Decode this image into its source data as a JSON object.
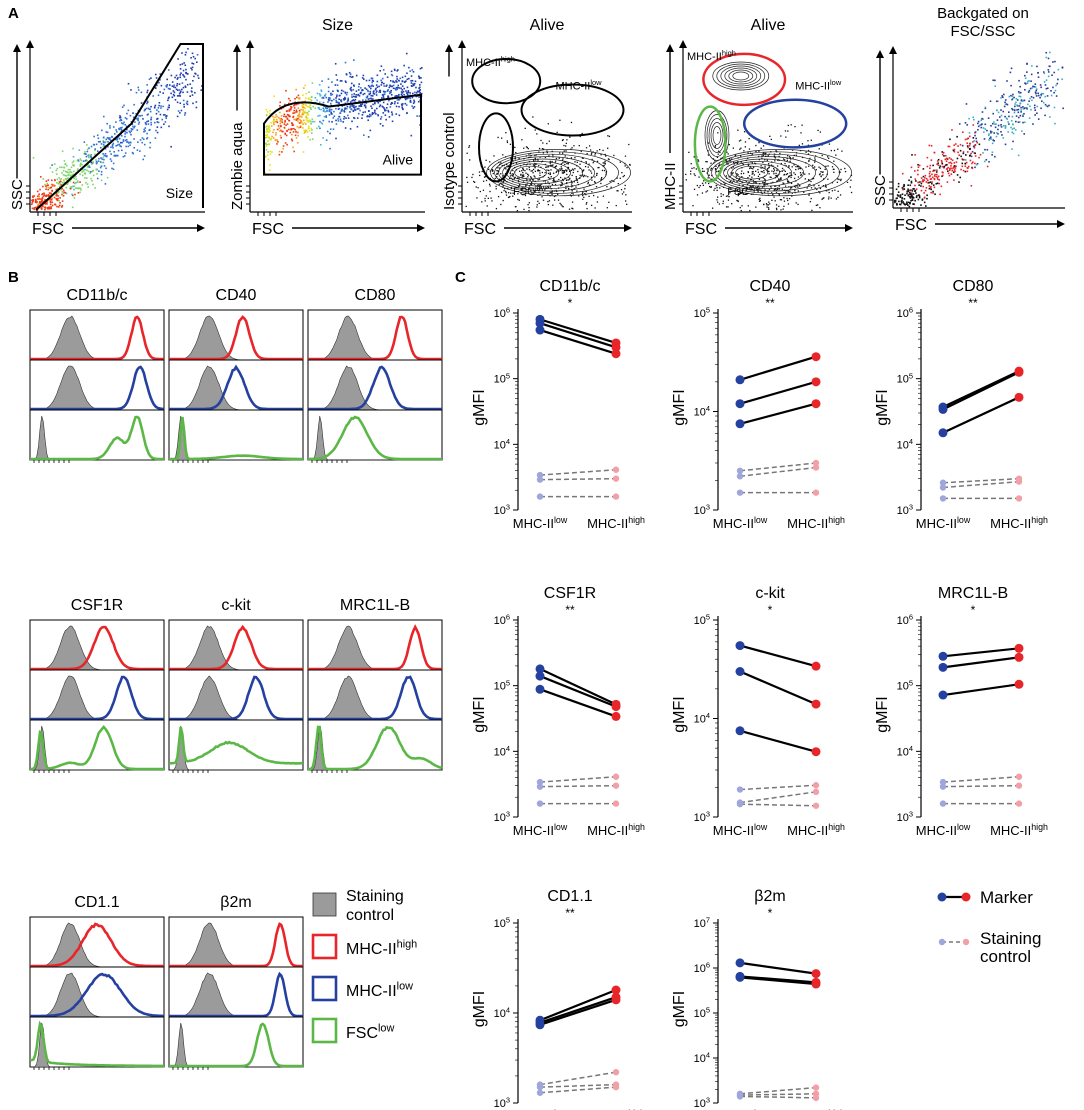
{
  "colors": {
    "high": "#e8262a",
    "low": "#2541a0",
    "fsclow": "#5cb846",
    "high_light": "#f2a0a8",
    "low_light": "#9ea6dc",
    "dash": "#777777",
    "gray": "#9b9b9b",
    "jet_mid": "#e7e11c",
    "jet_hot": "#f03a14",
    "jet_cool": "#2a5ec4"
  },
  "panelA": {
    "label": "A",
    "plots": [
      {
        "title": "",
        "xlabel": "FSC",
        "ylabel": "SSC",
        "gate_labels": [
          "Size"
        ],
        "style": "jet_diag"
      },
      {
        "title": "Size",
        "xlabel": "FSC",
        "ylabel": "Zombie aqua",
        "gate_labels": [
          "Alive"
        ],
        "style": "jet_band"
      },
      {
        "title": "Alive",
        "xlabel": "FSC",
        "ylabel": "Isotype control",
        "gate_labels": [
          "MHC-II",
          "high",
          "MHC-II",
          "low",
          "FSC",
          "low"
        ],
        "style": "contour_iso"
      },
      {
        "title": "Alive",
        "xlabel": "FSC",
        "ylabel": "MHC-II",
        "gate_labels": [
          "MHC-II",
          "high",
          "MHC-II",
          "low",
          "FSC",
          "low"
        ],
        "style": "contour_mhc"
      },
      {
        "title": "Backgated on FSC/SSC",
        "title_lines": [
          "Backgated on",
          "FSC/SSC"
        ],
        "xlabel": "FSC",
        "ylabel": "SSC",
        "gate_labels": [],
        "style": "backgate"
      }
    ]
  },
  "panelB": {
    "label": "B",
    "markers": [
      {
        "name": "CD11b/c",
        "peaks": [
          0.8,
          0.82,
          0.78
        ],
        "widths": [
          0.06,
          0.07,
          0.07
        ],
        "green": "broad_high"
      },
      {
        "name": "CD40",
        "peaks": [
          0.55,
          0.5,
          0.15
        ],
        "widths": [
          0.07,
          0.09,
          0.03
        ],
        "green": "low_spike"
      },
      {
        "name": "CD80",
        "peaks": [
          0.7,
          0.55,
          0.35
        ],
        "widths": [
          0.06,
          0.09,
          0.12
        ],
        "green": "broad_mid"
      },
      {
        "name": "CSF1R",
        "peaks": [
          0.55,
          0.7,
          0.55
        ],
        "widths": [
          0.1,
          0.08,
          0.09
        ],
        "green": "bimodal"
      },
      {
        "name": "c-kit",
        "peaks": [
          0.55,
          0.65,
          0.55
        ],
        "widths": [
          0.09,
          0.08,
          0.2
        ],
        "green": "broad_plateau"
      },
      {
        "name": "MRC1L-B",
        "peaks": [
          0.8,
          0.75,
          0.6
        ],
        "widths": [
          0.06,
          0.08,
          0.12
        ],
        "green": "bimodal_wide"
      },
      {
        "name": "CD1.1",
        "peaks": [
          0.5,
          0.55,
          0.1
        ],
        "widths": [
          0.15,
          0.18,
          0.04
        ],
        "green": "low_tail"
      },
      {
        "name": "β2m",
        "peaks": [
          0.83,
          0.83,
          0.7
        ],
        "widths": [
          0.05,
          0.05,
          0.06
        ],
        "green": "high_narrow"
      }
    ],
    "legend": [
      {
        "text": "Staining control",
        "lines": [
          "Staining",
          "control"
        ],
        "sup": "",
        "color": "gray",
        "filled": true
      },
      {
        "text": "MHC-II",
        "lines": [
          "MHC-II"
        ],
        "sup": "high",
        "color": "high",
        "filled": false
      },
      {
        "text": "MHC-II",
        "lines": [
          "MHC-II"
        ],
        "sup": "low",
        "color": "low",
        "filled": false
      },
      {
        "text": "FSC",
        "lines": [
          "FSC"
        ],
        "sup": "low",
        "color": "fsclow",
        "filled": false
      }
    ]
  },
  "chart_data": {
    "label": "C",
    "type": "line",
    "x_categories": [
      "MHC-II low",
      "MHC-II high"
    ],
    "x_tick_base": "MHC-II",
    "x_tick_sups": [
      "low",
      "high"
    ],
    "ylabel": "gMFI",
    "scale": "log10",
    "legend": [
      {
        "text": "Marker",
        "style": "solid"
      },
      {
        "text": "Staining control",
        "lines": [
          "Staining",
          "control"
        ],
        "style": "dashed"
      }
    ],
    "plots": [
      {
        "title": "CD11b/c",
        "significance": "*",
        "ylim": [
          1000,
          1000000
        ],
        "ticks": [
          "10",
          "10",
          "10",
          "10"
        ],
        "tick_exps": [
          "3",
          "4",
          "5",
          "6"
        ],
        "marker": [
          [
            800000,
            350000
          ],
          [
            700000,
            300000
          ],
          [
            550000,
            240000
          ]
        ],
        "control": [
          [
            3400,
            4100
          ],
          [
            2900,
            3000
          ],
          [
            1600,
            1600
          ]
        ]
      },
      {
        "title": "CD40",
        "significance": "**",
        "ylim": [
          1000,
          100000
        ],
        "ticks": [
          "10",
          "10",
          "10"
        ],
        "tick_exps": [
          "3",
          "4",
          "5"
        ],
        "marker": [
          [
            21000,
            36000
          ],
          [
            12000,
            20000
          ],
          [
            7500,
            12000
          ]
        ],
        "control": [
          [
            2500,
            3000
          ],
          [
            2200,
            2700
          ],
          [
            1500,
            1500
          ]
        ]
      },
      {
        "title": "CD80",
        "significance": "**",
        "ylim": [
          1000,
          1000000
        ],
        "ticks": [
          "10",
          "10",
          "10",
          "10"
        ],
        "tick_exps": [
          "3",
          "4",
          "5",
          "6"
        ],
        "marker": [
          [
            37000,
            130000
          ],
          [
            34000,
            125000
          ],
          [
            15000,
            52000
          ]
        ],
        "control": [
          [
            2600,
            3000
          ],
          [
            2200,
            2700
          ],
          [
            1500,
            1500
          ]
        ]
      },
      {
        "title": "CSF1R",
        "significance": "**",
        "ylim": [
          1000,
          1000000
        ],
        "ticks": [
          "10",
          "10",
          "10",
          "10"
        ],
        "tick_exps": [
          "3",
          "4",
          "5",
          "6"
        ],
        "marker": [
          [
            180000,
            52000
          ],
          [
            140000,
            48000
          ],
          [
            88000,
            34000
          ]
        ],
        "control": [
          [
            3400,
            4100
          ],
          [
            2900,
            3000
          ],
          [
            1600,
            1600
          ]
        ]
      },
      {
        "title": "c-kit",
        "significance": "*",
        "ylim": [
          1000,
          100000
        ],
        "ticks": [
          "10",
          "10",
          "10"
        ],
        "tick_exps": [
          "3",
          "4",
          "5"
        ],
        "marker": [
          [
            55000,
            34000
          ],
          [
            30000,
            14000
          ],
          [
            7500,
            4600
          ]
        ],
        "control": [
          [
            1900,
            2100
          ],
          [
            1400,
            1800
          ],
          [
            1350,
            1300
          ]
        ]
      },
      {
        "title": "MRC1L-B",
        "significance": "*",
        "ylim": [
          1000,
          1000000
        ],
        "ticks": [
          "10",
          "10",
          "10",
          "10"
        ],
        "tick_exps": [
          "3",
          "4",
          "5",
          "6"
        ],
        "marker": [
          [
            280000,
            370000
          ],
          [
            190000,
            270000
          ],
          [
            72000,
            105000
          ]
        ],
        "control": [
          [
            3400,
            4100
          ],
          [
            2900,
            3000
          ],
          [
            1600,
            1600
          ]
        ]
      },
      {
        "title": "CD1.1",
        "significance": "**",
        "ylim": [
          1000,
          100000
        ],
        "ticks": [
          "10",
          "10",
          "10"
        ],
        "tick_exps": [
          "3",
          "4",
          "5"
        ],
        "marker": [
          [
            8300,
            18000
          ],
          [
            7800,
            15000
          ],
          [
            7400,
            14000
          ]
        ],
        "control": [
          [
            1600,
            2200
          ],
          [
            1500,
            1600
          ],
          [
            1300,
            1500
          ]
        ]
      },
      {
        "title": "β2m",
        "significance": "*",
        "ylim": [
          1000,
          10000000
        ],
        "ticks": [
          "10",
          "10",
          "10",
          "10",
          "10"
        ],
        "tick_exps": [
          "3",
          "4",
          "5",
          "6",
          "7"
        ],
        "marker": [
          [
            1300000,
            750000
          ],
          [
            650000,
            480000
          ],
          [
            620000,
            440000
          ]
        ],
        "control": [
          [
            1600,
            2200
          ],
          [
            1500,
            1600
          ],
          [
            1400,
            1300
          ]
        ]
      }
    ]
  }
}
